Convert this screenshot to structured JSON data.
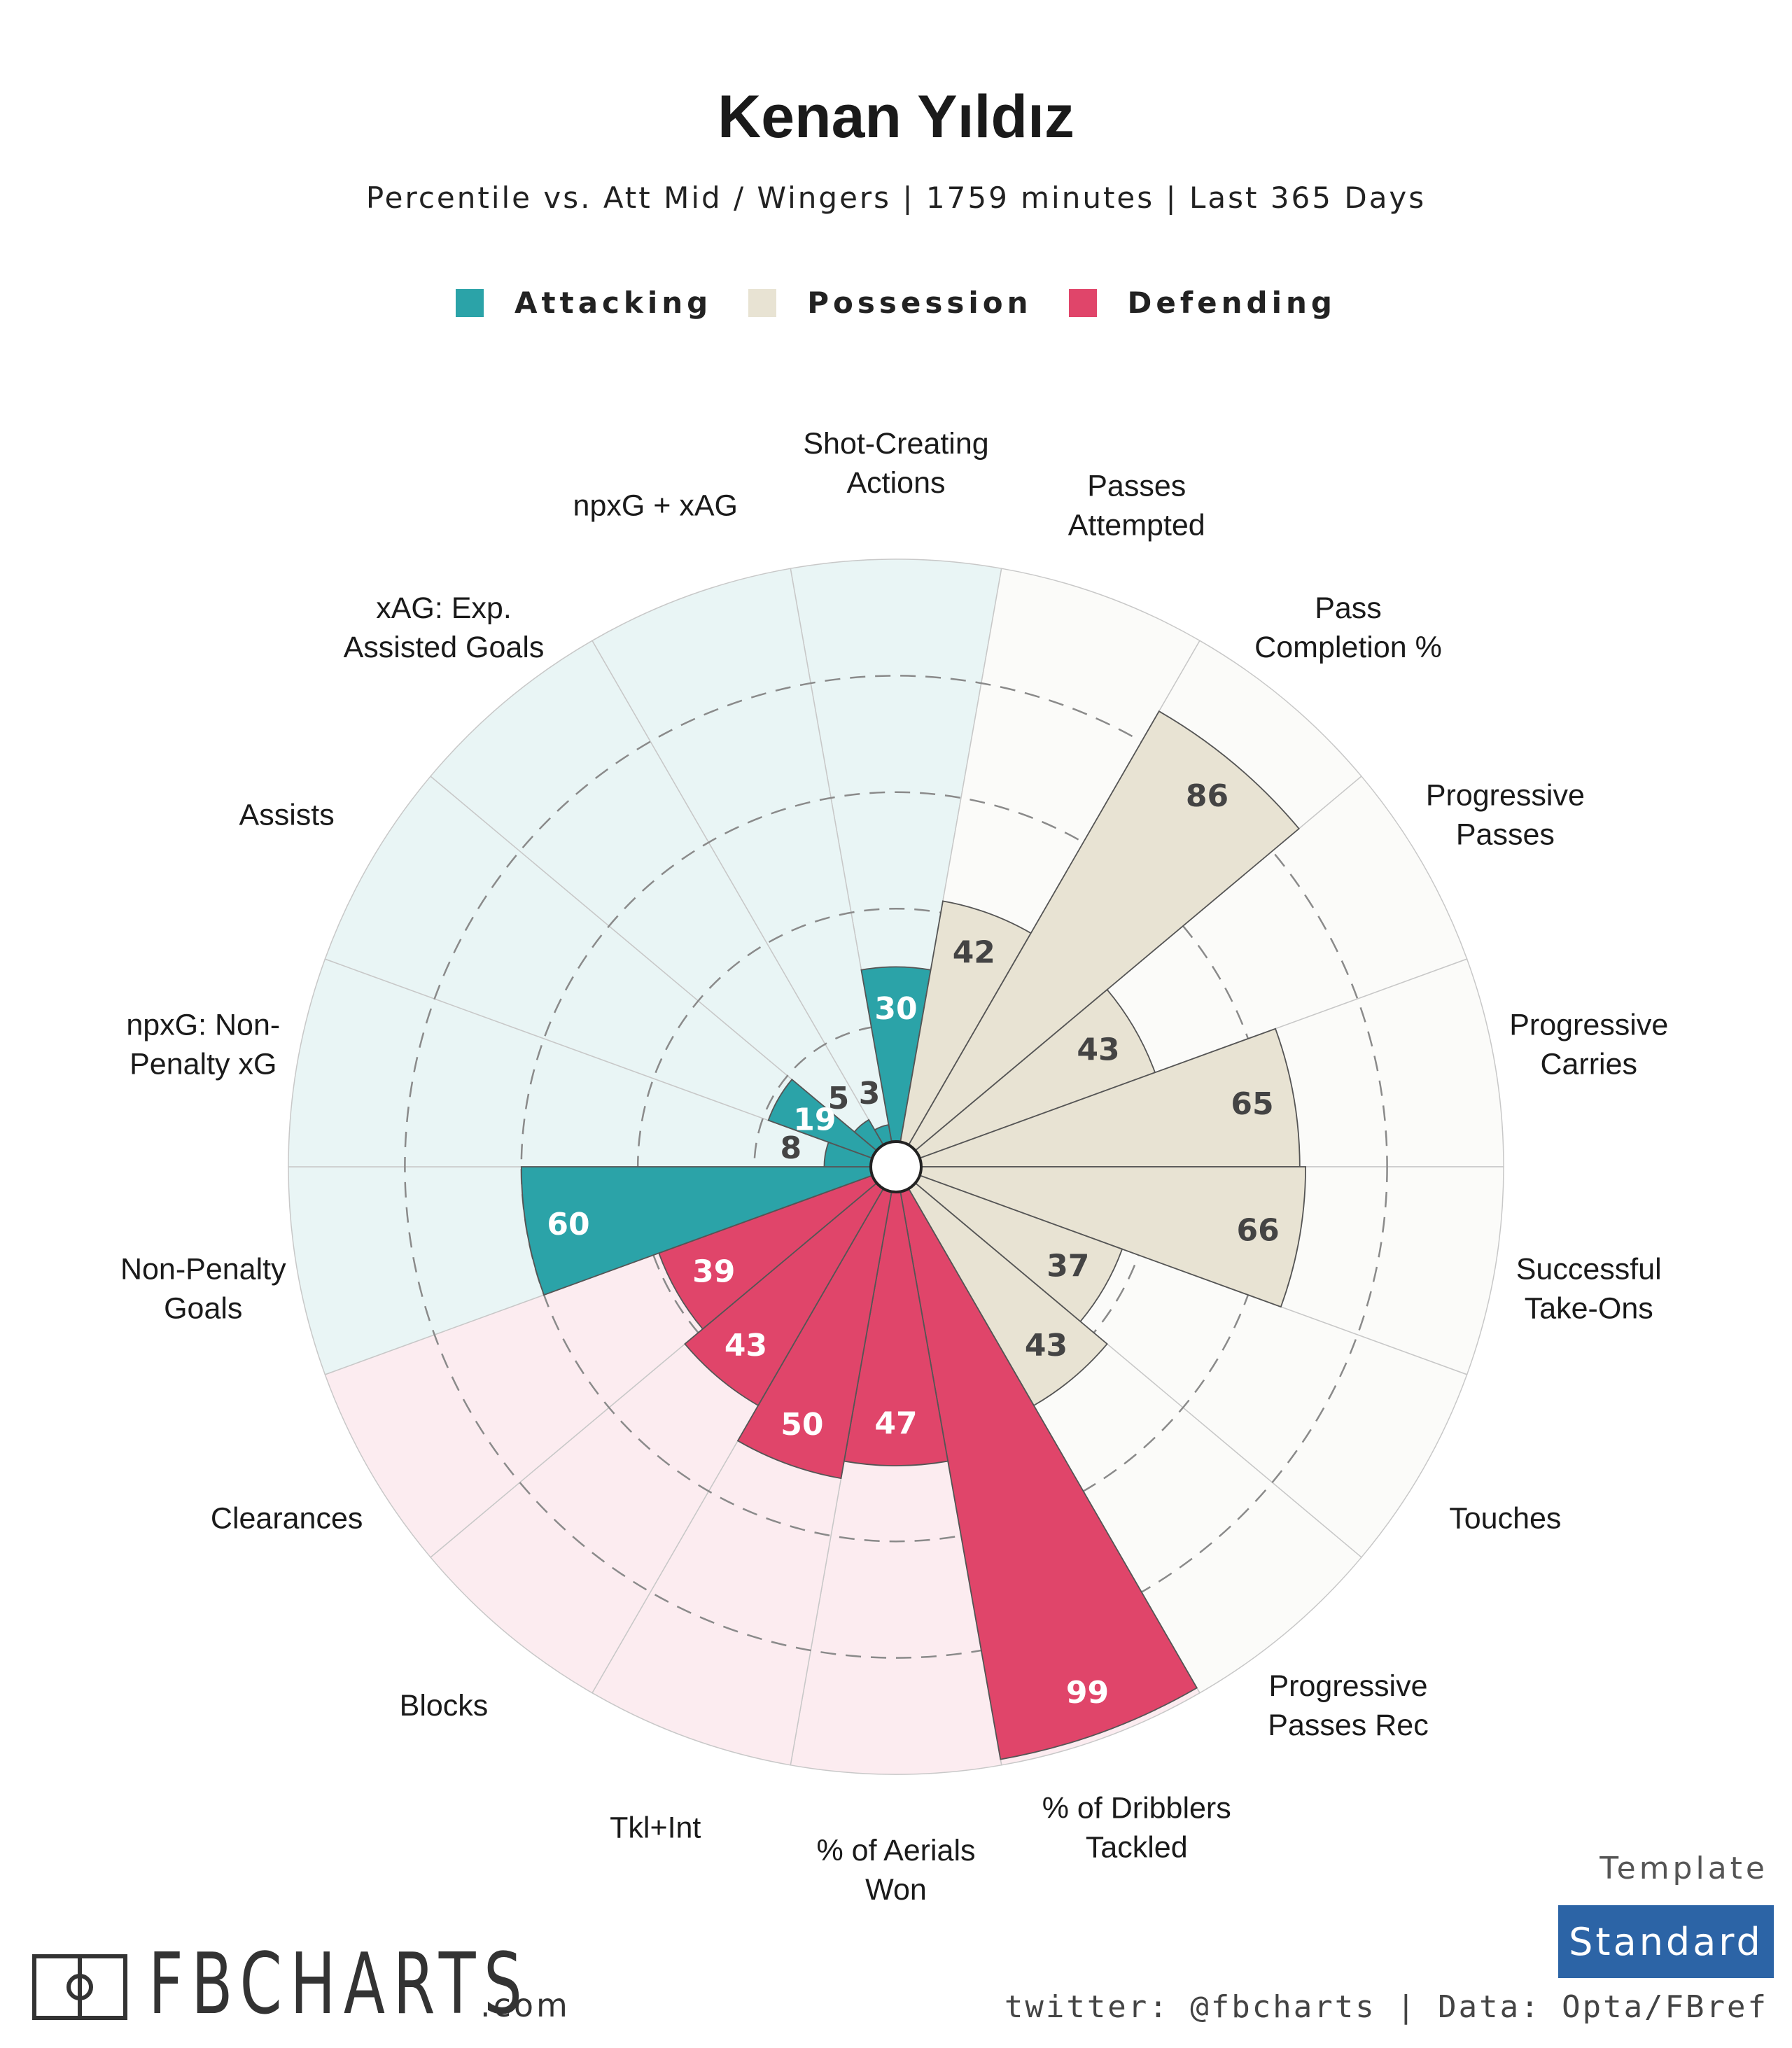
{
  "header": {
    "title": "Kenan Yıldız",
    "subtitle": "Percentile vs. Att Mid / Wingers | 1759 minutes | Last 365 Days"
  },
  "legend": [
    {
      "label": "Attacking",
      "color": "#2ba3a8"
    },
    {
      "label": "Possession",
      "color": "#e8e3d3"
    },
    {
      "label": "Defending",
      "color": "#e0456a"
    }
  ],
  "chart_data": {
    "type": "polar-bar",
    "rlim": [
      0,
      100
    ],
    "gridlines": [
      20,
      40,
      60,
      80
    ],
    "categories": [
      {
        "label": "Shot-Creating Actions",
        "group": "Attacking",
        "value": 30
      },
      {
        "label": "Passes Attempted",
        "group": "Possession",
        "value": 42
      },
      {
        "label": "Pass Completion %",
        "group": "Possession",
        "value": 86
      },
      {
        "label": "Progressive Passes",
        "group": "Possession",
        "value": 43
      },
      {
        "label": "Progressive Carries",
        "group": "Possession",
        "value": 65
      },
      {
        "label": "Successful Take-Ons",
        "group": "Possession",
        "value": 66
      },
      {
        "label": "Touches",
        "group": "Possession",
        "value": 37
      },
      {
        "label": "Progressive Passes Rec",
        "group": "Possession",
        "value": 43
      },
      {
        "label": "% of Dribblers Tackled",
        "group": "Defending",
        "value": 99
      },
      {
        "label": "% of Aerials Won",
        "group": "Defending",
        "value": 47
      },
      {
        "label": "Tkl+Int",
        "group": "Defending",
        "value": 50
      },
      {
        "label": "Blocks",
        "group": "Defending",
        "value": 43
      },
      {
        "label": "Clearances",
        "group": "Defending",
        "value": 39
      },
      {
        "label": "Non-Penalty Goals",
        "group": "Attacking",
        "value": 60
      },
      {
        "label": "npxG: Non-Penalty xG",
        "group": "Attacking",
        "value": 8
      },
      {
        "label": "Assists",
        "group": "Attacking",
        "value": 19
      },
      {
        "label": "xAG: Exp. Assisted Goals",
        "group": "Attacking",
        "value": 5
      },
      {
        "label": "npxG + xAG",
        "group": "Attacking",
        "value": 3
      }
    ],
    "label_lines": [
      [
        "Shot-Creating",
        "Actions"
      ],
      [
        "Passes",
        "Attempted"
      ],
      [
        "Pass",
        "Completion %"
      ],
      [
        "Progressive",
        "Passes"
      ],
      [
        "Progressive",
        "Carries"
      ],
      [
        "Successful",
        "Take-Ons"
      ],
      [
        "Touches"
      ],
      [
        "Progressive",
        "Passes Rec"
      ],
      [
        "% of Dribblers",
        "Tackled"
      ],
      [
        "% of Aerials",
        "Won"
      ],
      [
        "Tkl+Int"
      ],
      [
        "Blocks"
      ],
      [
        "Clearances"
      ],
      [
        "Non-Penalty",
        "Goals"
      ],
      [
        "npxG: Non-",
        "Penalty xG"
      ],
      [
        "Assists"
      ],
      [
        "xAG: Exp.",
        "Assisted Goals"
      ],
      [
        "npxG + xAG"
      ]
    ],
    "group_colors": {
      "Attacking": {
        "bar": "#2ba3a8",
        "background": "#e9f5f5",
        "value_text": "#ffffff"
      },
      "Possession": {
        "bar": "#e8e3d3",
        "background": "#fbfbf9",
        "value_text": "#444444"
      },
      "Defending": {
        "bar": "#e0456a",
        "background": "#fcecf0",
        "value_text": "#ffffff"
      }
    }
  },
  "template": {
    "label": "Template",
    "value": "Standard"
  },
  "footer": {
    "source": "twitter: @fbcharts | Data: Opta/FBref",
    "logo": "FBCHARTS",
    "logo_suffix": ".com"
  }
}
